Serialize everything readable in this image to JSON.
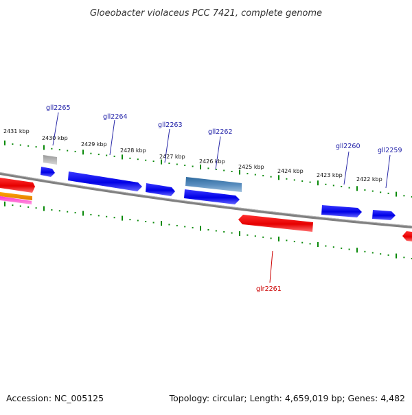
{
  "title": "Gloeobacter violaceus PCC 7421, complete genome",
  "footer": {
    "accession": "Accession: NC_005125",
    "summary": "Topology: circular; Length: 4,659,019 bp; Genes: 4,482"
  },
  "colors": {
    "forward_gene": "#0000ee",
    "reverse_gene": "#ee0000",
    "highlight_gene": "#4a7fae",
    "pseudo_gene": "#aaaaaa",
    "forward_label": "#1a1aa6",
    "reverse_label": "#cc0000",
    "ruler": "#0a8a0a",
    "backbone": "#888888"
  },
  "ticks": [
    {
      "label": "2431 kbp"
    },
    {
      "label": "2430 kbp"
    },
    {
      "label": "2429 kbp"
    },
    {
      "label": "2428 kbp"
    },
    {
      "label": "2427 kbp"
    },
    {
      "label": "2426 kbp"
    },
    {
      "label": "2425 kbp"
    },
    {
      "label": "2424 kbp"
    },
    {
      "label": "2423 kbp"
    },
    {
      "label": "2422 kbp"
    }
  ],
  "gene_labels": [
    {
      "label": "gll2265",
      "strand": "forward"
    },
    {
      "label": "gll2264",
      "strand": "forward"
    },
    {
      "label": "gll2263",
      "strand": "forward"
    },
    {
      "label": "gll2262",
      "strand": "forward"
    },
    {
      "label": "gll2260",
      "strand": "forward"
    },
    {
      "label": "gll2259",
      "strand": "forward"
    },
    {
      "label": "glr2261",
      "strand": "reverse"
    }
  ]
}
